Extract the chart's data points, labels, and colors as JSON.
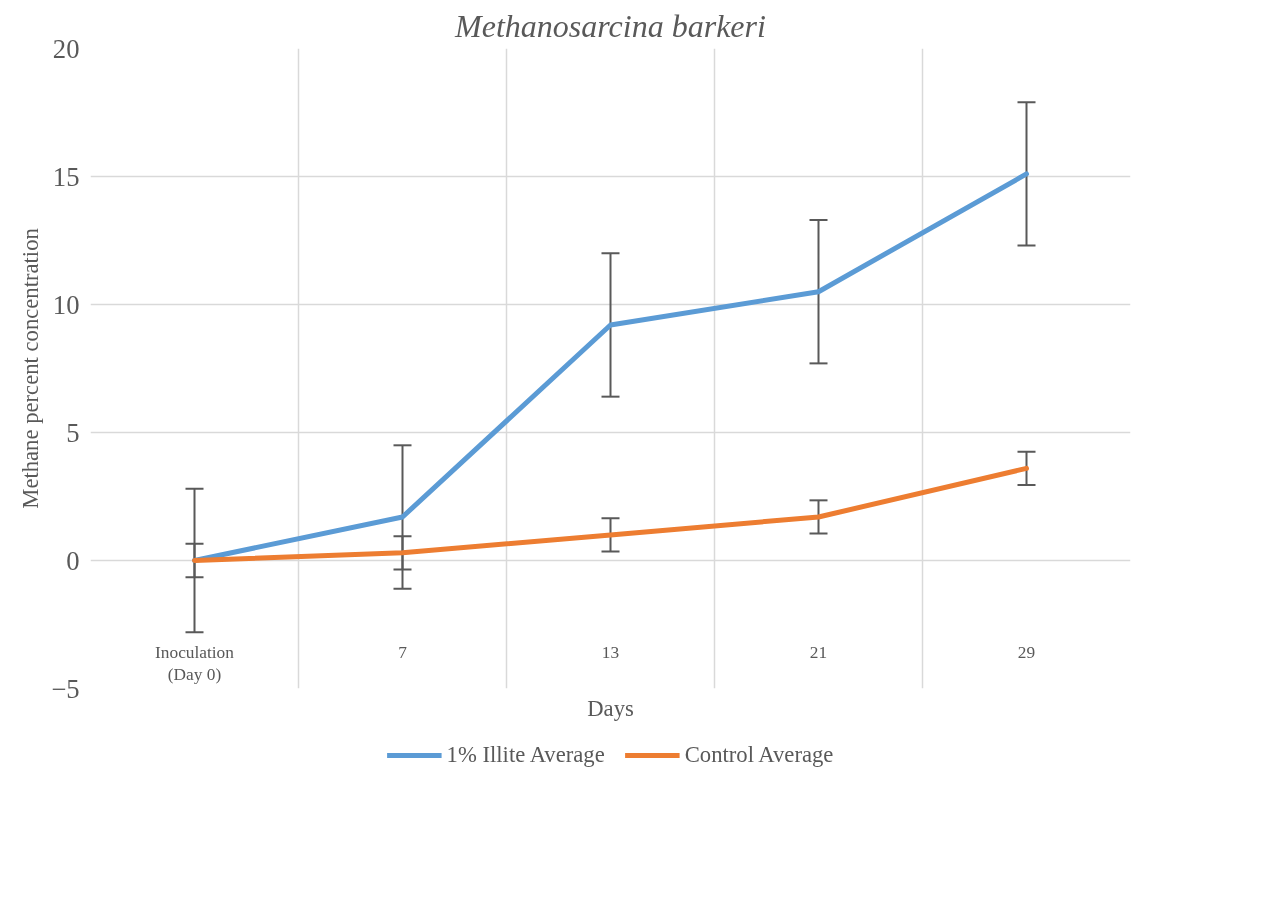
{
  "chart_data": {
    "type": "line",
    "title": "Methanosarcina barkeri",
    "xlabel": "Days",
    "ylabel": "Methane percent concentration",
    "categories": [
      "Inoculation\n(Day 0)",
      "7",
      "13",
      "21",
      "29"
    ],
    "series": [
      {
        "name": "1% Illite Average",
        "color": "#5b9bd5",
        "values": [
          0,
          1.7,
          9.2,
          10.5,
          15.1
        ],
        "errors": [
          2.8,
          2.8,
          2.8,
          2.8,
          2.8
        ]
      },
      {
        "name": "Control Average",
        "color": "#ed7d31",
        "values": [
          0,
          0.3,
          1.0,
          1.7,
          3.6
        ],
        "errors": [
          0.65,
          0.65,
          0.65,
          0.65,
          0.65
        ]
      }
    ],
    "ylim": [
      -5,
      20
    ],
    "yticks": [
      -5,
      0,
      5,
      10,
      15,
      20
    ],
    "grid": true,
    "legend": "bottom",
    "marker": "none",
    "line_style": "solid"
  }
}
